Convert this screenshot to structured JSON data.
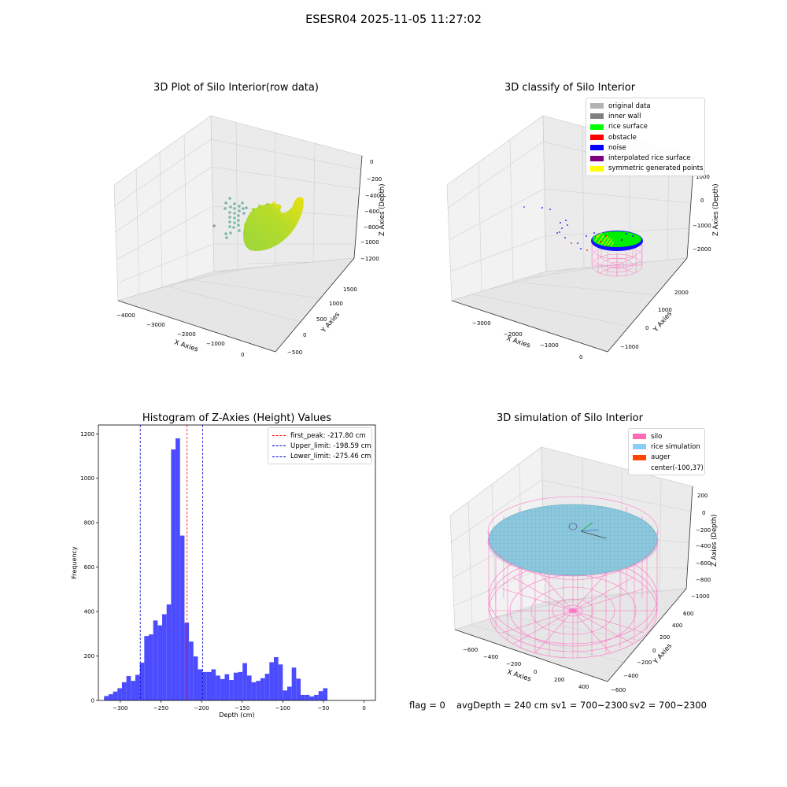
{
  "figure": {
    "title": "ESESR04 2025-11-05 11:27:02",
    "footer": {
      "flag": "flag = 0",
      "avg_depth": "avgDepth = 240 cm",
      "sv1": "sv1 = 700~2300",
      "sv2": "sv2 = 700~2300"
    }
  },
  "chart_data": [
    {
      "type": "scatter",
      "title": "3D Plot of Silo Interior(row data)",
      "xlabel": "X Axies",
      "ylabel": "Y Axies",
      "zlabel": "Z Axies (Depth)",
      "x_ticks": [
        "−4000",
        "−3000",
        "−2000",
        "−1000",
        "0"
      ],
      "y_ticks": [
        "−500",
        "0",
        "500",
        "1000",
        "1500"
      ],
      "z_ticks": [
        "0",
        "−200",
        "−400",
        "−600",
        "−800",
        "−1000",
        "−1200"
      ],
      "colormap": "viridis",
      "colors": {
        "scatter_low": "#7ab9a6",
        "surface_low": "#90d43c",
        "surface_high": "#e8e00e"
      }
    },
    {
      "type": "scatter",
      "title": "3D classify of Silo Interior",
      "xlabel": "X Axies",
      "ylabel": "Y Axies",
      "zlabel": "Z Axies (Depth)",
      "x_ticks": [
        "−3000",
        "−2000",
        "−1000",
        "0"
      ],
      "y_ticks": [
        "−1000",
        "0",
        "1000",
        "2000"
      ],
      "z_ticks": [
        "1000",
        "0",
        "−1000",
        "−2000"
      ],
      "legend": [
        {
          "label": "original data",
          "color": "#b3b3b3"
        },
        {
          "label": "inner wall",
          "color": "#808080"
        },
        {
          "label": "rice surface",
          "color": "#00ff00"
        },
        {
          "label": "obstacle",
          "color": "#ff0000"
        },
        {
          "label": "noise",
          "color": "#0000ff"
        },
        {
          "label": "interpolated rice surface",
          "color": "#800080"
        },
        {
          "label": "symmetric generated points",
          "color": "#ffff00"
        }
      ],
      "wireframe_color": "#ff77c6"
    },
    {
      "type": "bar",
      "title": "Histogram of Z-Axies (Height) Values",
      "xlabel": "Depth (cm)",
      "ylabel": "Frequency",
      "xlim": [
        -327,
        14
      ],
      "ylim": [
        0,
        1240
      ],
      "x_ticks": [
        -300,
        -250,
        -200,
        -150,
        -100,
        -50,
        0
      ],
      "y_ticks": [
        0,
        200,
        400,
        600,
        800,
        1000,
        1200
      ],
      "bar_color": "#4c4cff",
      "bin_start": -320,
      "bin_width": 5.5,
      "values": [
        20,
        28,
        40,
        55,
        82,
        110,
        88,
        115,
        170,
        290,
        297,
        360,
        338,
        388,
        432,
        1130,
        1180,
        742,
        350,
        265,
        198,
        140,
        128,
        128,
        140,
        112,
        96,
        118,
        92,
        125,
        128,
        168,
        112,
        82,
        88,
        100,
        120,
        172,
        195,
        162,
        45,
        62,
        148,
        98,
        25,
        25,
        18,
        25,
        42,
        55
      ],
      "reference_lines": [
        {
          "label": "first_peak: -217.80 cm",
          "value": -217.8,
          "color": "#ff0000"
        },
        {
          "label": "Upper_limit: -198.59 cm",
          "value": -198.59,
          "color": "#0000cc"
        },
        {
          "label": "Lower_limit: -275.46 cm",
          "value": -275.46,
          "color": "#0000cc"
        }
      ]
    },
    {
      "type": "area",
      "title": "3D simulation of Silo Interior",
      "xlabel": "X Axies",
      "ylabel": "Y Axies",
      "zlabel": "Z Axies (Depth)",
      "x_ticks": [
        "−600",
        "−400",
        "−200",
        "0",
        "200",
        "400"
      ],
      "y_ticks": [
        "−600",
        "−400",
        "−200",
        "0",
        "200",
        "400",
        "600"
      ],
      "z_ticks": [
        "200",
        "0",
        "−200",
        "−400",
        "−600",
        "−800",
        "−1000"
      ],
      "legend": [
        {
          "label": "silo",
          "color": "#ff69b4"
        },
        {
          "label": "rice simulation",
          "color": "#87cefa"
        },
        {
          "label": "auger",
          "color": "#ff4500"
        },
        {
          "label": "center(-100,37)",
          "color": ""
        }
      ]
    }
  ]
}
